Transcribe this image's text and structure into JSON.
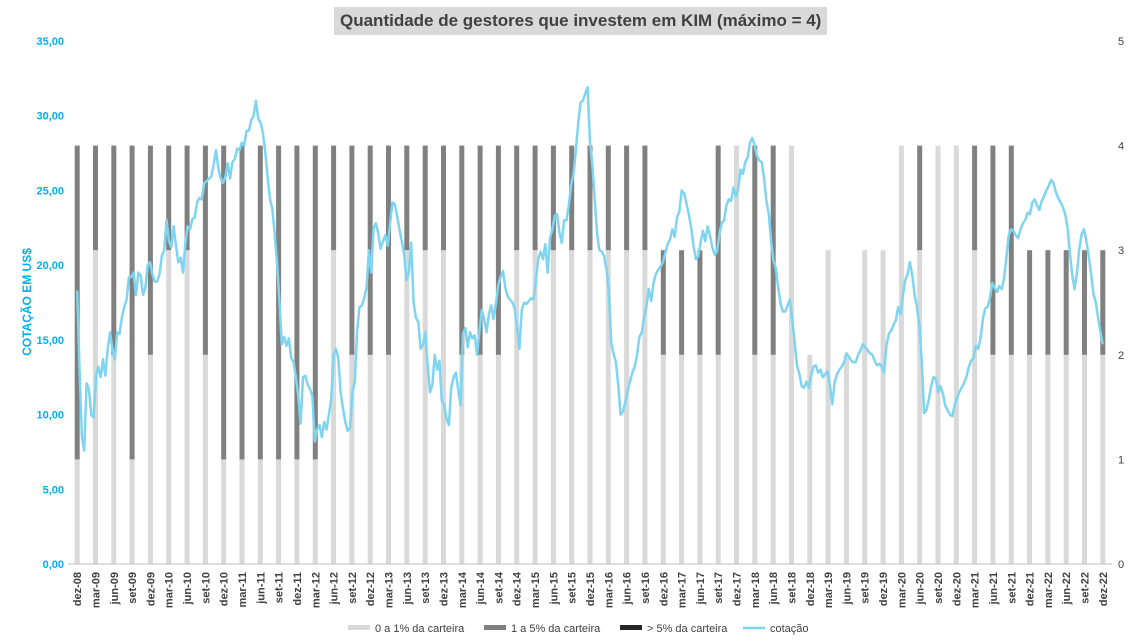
{
  "chart_data": {
    "type": "bar+line",
    "title": "Quantidade de gestores que investem em KIM (máximo = 4)",
    "ylabel": "COTAÇÃO EM US$",
    "ylim": [
      0,
      35
    ],
    "y2lim": [
      0,
      5
    ],
    "yticks": [
      "0,00",
      "5,00",
      "10,00",
      "15,00",
      "20,00",
      "25,00",
      "30,00",
      "35,00"
    ],
    "y2ticks": [
      "0",
      "1",
      "2",
      "3",
      "4",
      "5"
    ],
    "xticks": [
      "dez-08",
      "mar-09",
      "jun-09",
      "set-09",
      "dez-09",
      "mar-10",
      "jun-10",
      "set-10",
      "dez-10",
      "mar-11",
      "jun-11",
      "set-11",
      "dez-11",
      "mar-12",
      "jun-12",
      "set-12",
      "dez-12",
      "mar-13",
      "jun-13",
      "set-13",
      "dez-13",
      "mar-14",
      "jun-14",
      "set-14",
      "dez-14",
      "mar-15",
      "jun-15",
      "set-15",
      "dez-15",
      "mar-16",
      "jun-16",
      "set-16",
      "dez-16",
      "mar-17",
      "jun-17",
      "set-17",
      "dez-17",
      "mar-18",
      "jun-18",
      "set-18",
      "dez-18",
      "mar-19",
      "jun-19",
      "set-19",
      "dez-19",
      "mar-20",
      "jun-20",
      "set-20",
      "dez-20",
      "mar-21",
      "jun-21",
      "set-21",
      "dez-21",
      "mar-22",
      "jun-22",
      "set-22",
      "dez-22"
    ],
    "series": [
      {
        "name": "0 a 1% da carteira",
        "color": "#d9d9d9",
        "values": [
          1,
          3,
          2,
          1,
          2,
          3,
          3,
          2,
          1,
          1,
          1,
          1,
          1,
          1,
          3,
          2,
          2,
          2,
          3,
          3,
          3,
          2,
          2,
          2,
          3,
          3,
          3,
          3,
          3,
          3,
          3,
          3,
          2,
          2,
          2,
          2,
          4,
          2,
          2,
          4,
          2,
          3,
          2,
          3,
          3,
          4,
          3,
          4,
          4,
          3,
          2,
          2,
          2,
          2,
          2,
          2,
          2
        ]
      },
      {
        "name": "1 a 5% da carteira",
        "color": "#808080",
        "values": [
          3,
          1,
          2,
          3,
          2,
          1,
          1,
          2,
          3,
          3,
          3,
          3,
          3,
          3,
          1,
          2,
          2,
          2,
          1,
          1,
          1,
          2,
          2,
          2,
          1,
          1,
          1,
          1,
          1,
          1,
          1,
          1,
          1,
          1,
          1,
          2,
          0,
          2,
          2,
          0,
          0,
          0,
          0,
          0,
          0,
          0,
          1,
          0,
          0,
          1,
          2,
          2,
          1,
          1,
          1,
          1,
          1
        ]
      },
      {
        "name": "> 5% da carteira",
        "color": "#262626",
        "values": [
          0,
          0,
          0,
          0,
          0,
          0,
          0,
          0,
          0,
          0,
          0,
          0,
          0,
          0,
          0,
          0,
          0,
          0,
          0,
          0,
          0,
          0,
          0,
          0,
          0,
          0,
          0,
          0,
          0,
          0,
          0,
          0,
          0,
          0,
          0,
          0,
          0,
          0,
          0,
          0,
          0,
          0,
          0,
          0,
          0,
          0,
          0,
          0,
          0,
          0,
          0,
          0,
          0,
          0,
          0,
          0,
          0
        ]
      },
      {
        "name": "cotação",
        "color": "#7fd4f0",
        "values": [
          18.3,
          13.1,
          8.5,
          7.6,
          12.1,
          11.7,
          10.0,
          9.8,
          12.6,
          13.2,
          12.5,
          13.7,
          12.6,
          14.4,
          15.5,
          14.4,
          13.7,
          15.5,
          15.4,
          16.5,
          17.2,
          17.7,
          19.2,
          19.2,
          19.5,
          18.0,
          19.5,
          19.3,
          18.0,
          18.5,
          20.0,
          20.2,
          19.4,
          18.9,
          18.9,
          19.4,
          20.6,
          21.0,
          23.0,
          21.6,
          21.2,
          22.6,
          21.3,
          20.2,
          20.5,
          19.5,
          21.5,
          22.6,
          22.4,
          23.1,
          23.2,
          24.2,
          24.5,
          24.4,
          25.5,
          25.6,
          25.8,
          25.9,
          26.7,
          27.7,
          26.5,
          25.8,
          25.5,
          25.9,
          26.8,
          25.8,
          26.9,
          27.1,
          27.8,
          27.7,
          28.2,
          28.0,
          29.0,
          29.0,
          29.7,
          30.0,
          31.0,
          29.8,
          29.5,
          28.8,
          27.5,
          25.8,
          24.4,
          23.7,
          22.0,
          20.1,
          17.5,
          14.7,
          15.2,
          14.6,
          15.1,
          13.8,
          13.5,
          12.5,
          11.2,
          9.4,
          12.5,
          12.6,
          12.0,
          11.7,
          11.2,
          8.2,
          9.0,
          9.3,
          8.5,
          9.5,
          9.0,
          10.0,
          11.0,
          14.0,
          14.4,
          13.8,
          11.5,
          10.4,
          9.5,
          8.9,
          9.1,
          11.5,
          12.2,
          15.6,
          17.2,
          17.3,
          17.8,
          18.5,
          21.0,
          19.5,
          22.5,
          22.8,
          22.1,
          21.1,
          21.6,
          22.0,
          21.3,
          22.7,
          24.2,
          24.1,
          23.3,
          22.4,
          21.6,
          20.7,
          19.0,
          19.5,
          21.5,
          17.5,
          16.5,
          16.2,
          14.4,
          14.7,
          15.5,
          13.2,
          11.5,
          12.0,
          14.0,
          13.0,
          13.6,
          10.9,
          10.7,
          9.7,
          9.3,
          11.8,
          12.5,
          12.8,
          11.6,
          10.6,
          15.4,
          15.8,
          14.5,
          15.5,
          15.1,
          15.3,
          14.0,
          15.6,
          17.0,
          16.4,
          15.5,
          16.7,
          17.3,
          16.4,
          17.4,
          18.7,
          19.2,
          19.6,
          18.5,
          17.9,
          17.7,
          17.5,
          17.1,
          15.8,
          14.4,
          17.0,
          17.5,
          17.4,
          17.6,
          17.8,
          17.7,
          19.0,
          20.4,
          20.9,
          20.4,
          21.4,
          19.5,
          21.8,
          22.4,
          23.3,
          23.4,
          22.2,
          21.5,
          23.0,
          23.0,
          24.0,
          25.4,
          26.1,
          27.7,
          29.5,
          30.9,
          31.0,
          31.5,
          31.9,
          28.2,
          26.7,
          24.4,
          22.1,
          21.0,
          20.9,
          20.6,
          19.7,
          18.3,
          14.8,
          14.1,
          13.5,
          12.0,
          10.0,
          10.2,
          10.8,
          11.6,
          12.2,
          12.8,
          13.2,
          14.0,
          15.2,
          15.5,
          16.5,
          17.3,
          18.4,
          17.6,
          18.8,
          19.4,
          19.7,
          19.9,
          20.2,
          20.8,
          21.4,
          21.7,
          22.4,
          21.9,
          23.2,
          23.6,
          25.0,
          24.8,
          24.1,
          23.4,
          22.5,
          21.3,
          20.4,
          20.6,
          21.5,
          22.3,
          21.6,
          22.6,
          22.0,
          21.2,
          20.7,
          20.9,
          22.1,
          22.8,
          23.0,
          24.0,
          24.4,
          24.3,
          25.2,
          24.6,
          25.1,
          26.4,
          26.1,
          26.9,
          27.2,
          28.2,
          28.5,
          28.0,
          27.3,
          27.0,
          26.9,
          25.8,
          24.3,
          23.4,
          21.6,
          20.3,
          19.8,
          18.5,
          17.4,
          16.9,
          16.9,
          17.3,
          17.7,
          16.3,
          14.8,
          13.3,
          12.7,
          11.9,
          11.8,
          12.2,
          11.8,
          12.6,
          13.2,
          13.3,
          12.8,
          13.0,
          12.5,
          12.7,
          12.9,
          11.9,
          10.7,
          12.2,
          12.7,
          13.0,
          13.2,
          13.5,
          14.1,
          13.9,
          13.6,
          13.5,
          13.5,
          14.0,
          14.3,
          14.7,
          14.5,
          14.3,
          14.1,
          14.0,
          13.6,
          13.3,
          13.4,
          13.2,
          12.8,
          14.6,
          15.4,
          15.6,
          16.0,
          16.3,
          17.2,
          16.7,
          18.0,
          19.0,
          19.4,
          20.2,
          19.3,
          18.0,
          17.2,
          16.0,
          13.6,
          10.1,
          10.3,
          11.0,
          11.9,
          12.5,
          12.4,
          11.5,
          11.9,
          11.4,
          10.6,
          10.3,
          10.0,
          9.9,
          10.6,
          11.1,
          11.5,
          11.8,
          12.1,
          12.5,
          13.2,
          13.6,
          13.8,
          14.6,
          14.4,
          15.1,
          16.4,
          17.1,
          17.2,
          17.8,
          18.8,
          18.5,
          18.2,
          18.6,
          18.4,
          19.1,
          20.5,
          22.0,
          22.4,
          22.3,
          22.0,
          21.8,
          22.4,
          22.8,
          23.0,
          23.5,
          23.4,
          24.2,
          24.4,
          24.0,
          23.7,
          24.3,
          24.6,
          25.0,
          25.3,
          25.7,
          25.5,
          24.9,
          24.5,
          24.2,
          23.9,
          23.4,
          22.5,
          20.8,
          19.3,
          18.4,
          19.5,
          21.1,
          22.1,
          22.4,
          21.6,
          20.6,
          19.4,
          18.1,
          17.5,
          16.5,
          15.5,
          14.7
        ]
      }
    ],
    "legend_position": "bottom",
    "grid": false
  }
}
